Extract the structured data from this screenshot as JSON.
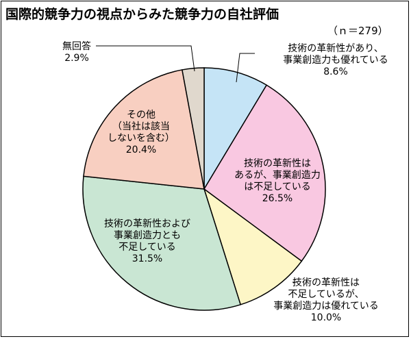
{
  "chart_data": {
    "type": "pie",
    "title": "国際的競争力の視点からみた競争力の自社評価",
    "sample_size": "（ｎ＝279）",
    "slices": [
      {
        "label_lines": [
          "技術の革新性があり、",
          "事業創造力も優れている",
          "8.6%"
        ],
        "value": 8.6,
        "color": "#c5e4f6"
      },
      {
        "label_lines": [
          "技術の革新性は",
          "あるが、事業創造力",
          "は不足している",
          "26.5%"
        ],
        "value": 26.5,
        "color": "#f9c8e1"
      },
      {
        "label_lines": [
          "技術の革新性は",
          "不足しているが、",
          "事業創造力は優れている",
          "10.0%"
        ],
        "value": 10.0,
        "color": "#fdf6c6"
      },
      {
        "label_lines": [
          "技術の革新性および",
          "事業創造力とも",
          "不足している",
          "31.5%"
        ],
        "value": 31.5,
        "color": "#c9e6d3"
      },
      {
        "label_lines": [
          "その他",
          "（当社は該当",
          "しないを含む）",
          "20.4%"
        ],
        "value": 20.4,
        "color": "#f8cfc1"
      },
      {
        "label_lines": [
          "無回答",
          "2.9%"
        ],
        "value": 2.9,
        "color": "#e0d8cd"
      }
    ]
  }
}
